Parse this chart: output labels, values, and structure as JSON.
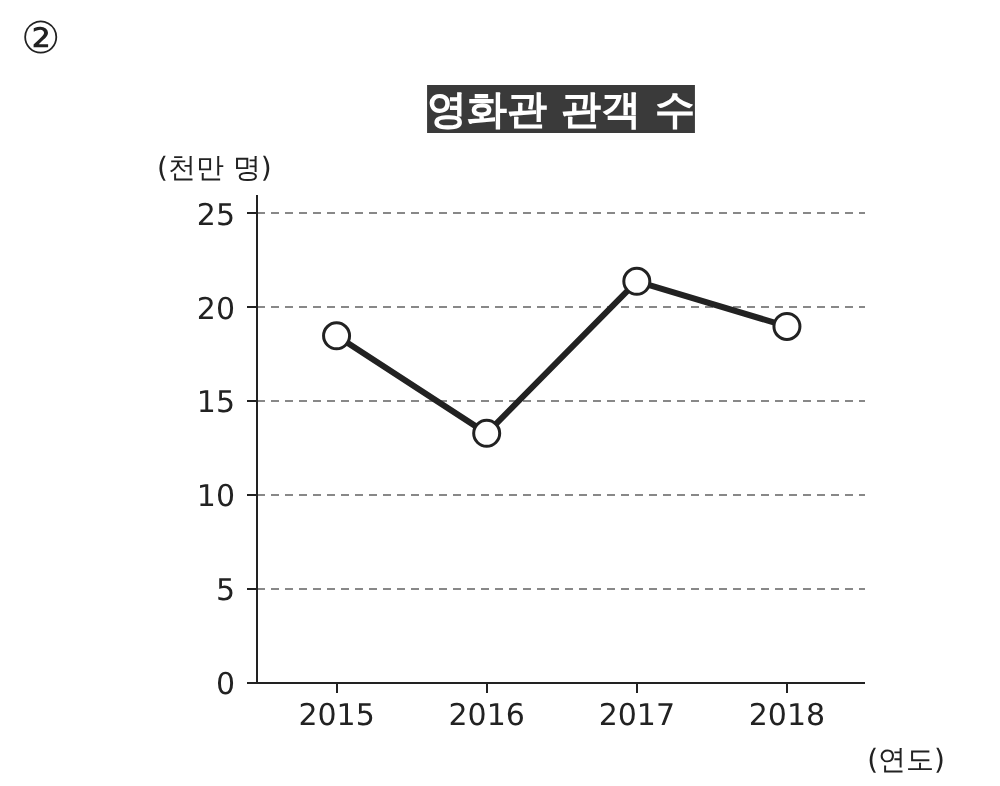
{
  "chart_data": {
    "type": "line",
    "title": "영화관 관객 수",
    "ylabel": "(천만 명)",
    "xlabel": "(연도)",
    "categories": [
      "2015",
      "2016",
      "2017",
      "2018"
    ],
    "values": [
      18.5,
      13.3,
      21.4,
      19.0
    ],
    "color": "#222222",
    "ylim": [
      0,
      26
    ],
    "yticks": [
      0,
      5,
      10,
      15,
      20,
      25
    ],
    "grid": "y",
    "marker": "circle",
    "line_style": "solid",
    "annotations": [
      "②"
    ]
  }
}
